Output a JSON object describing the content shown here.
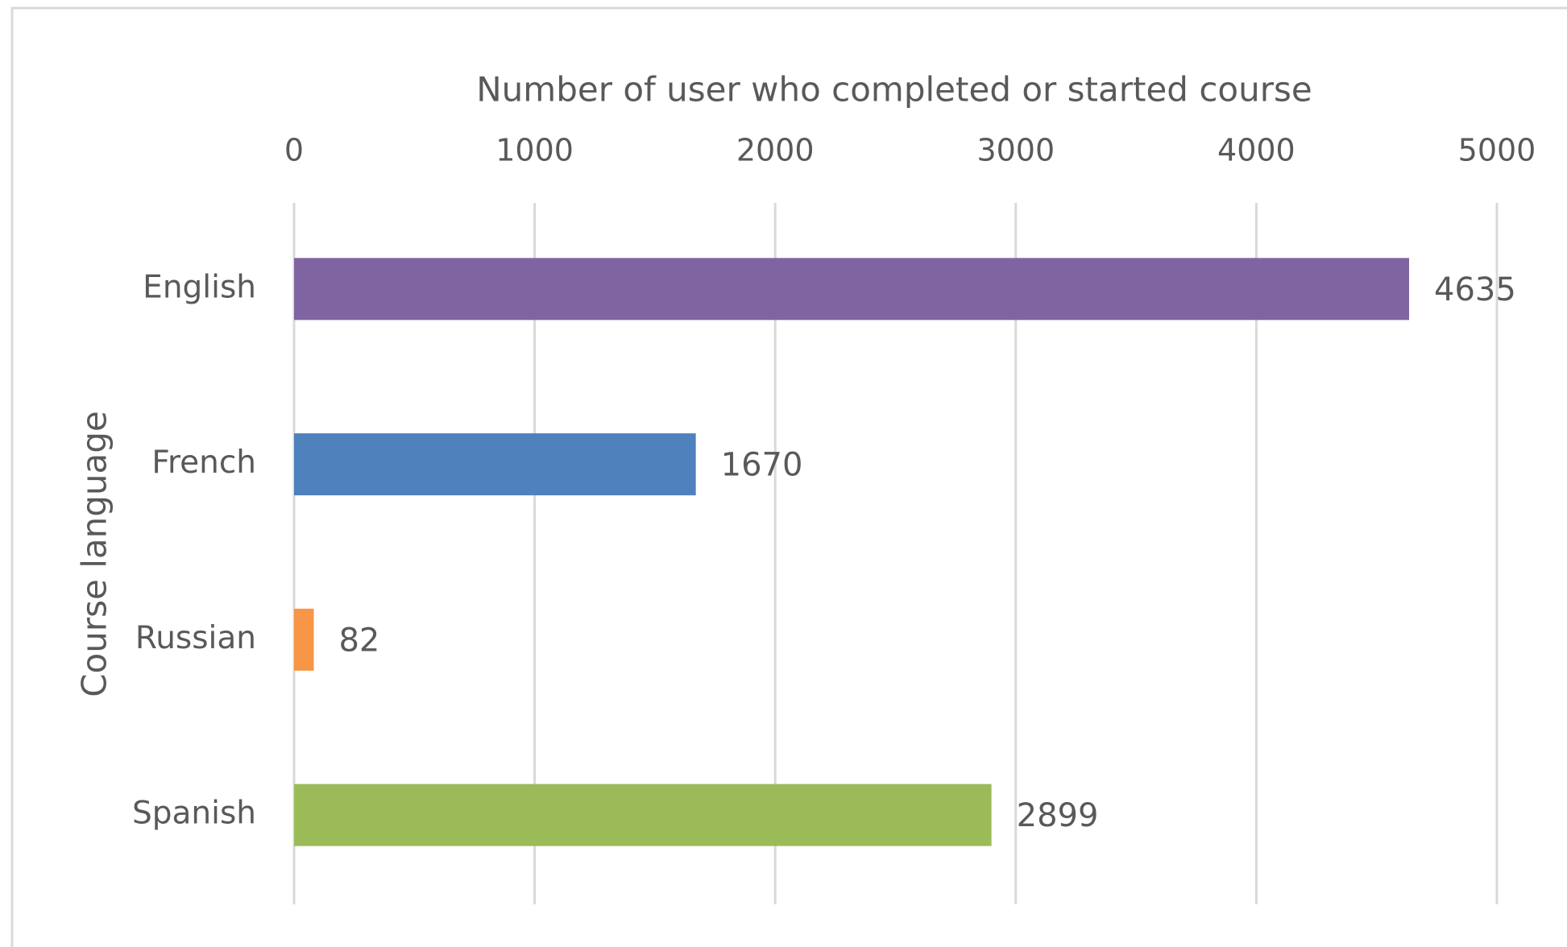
{
  "chart_data": {
    "type": "hbar",
    "x_axis_title": "Number of user who completed or started course",
    "y_axis_title": "Course language",
    "categories": [
      "English",
      "French",
      "Russian",
      "Spanish"
    ],
    "values": [
      4635,
      1670,
      82,
      2899
    ],
    "colors": [
      "#8064a2",
      "#4f81bd",
      "#f79646",
      "#9bbb59"
    ],
    "xlim": [
      0,
      5000
    ],
    "xticks": [
      0,
      1000,
      2000,
      3000,
      4000,
      5000
    ],
    "grid": true,
    "x_axis_position": "top",
    "data_labels": true
  }
}
